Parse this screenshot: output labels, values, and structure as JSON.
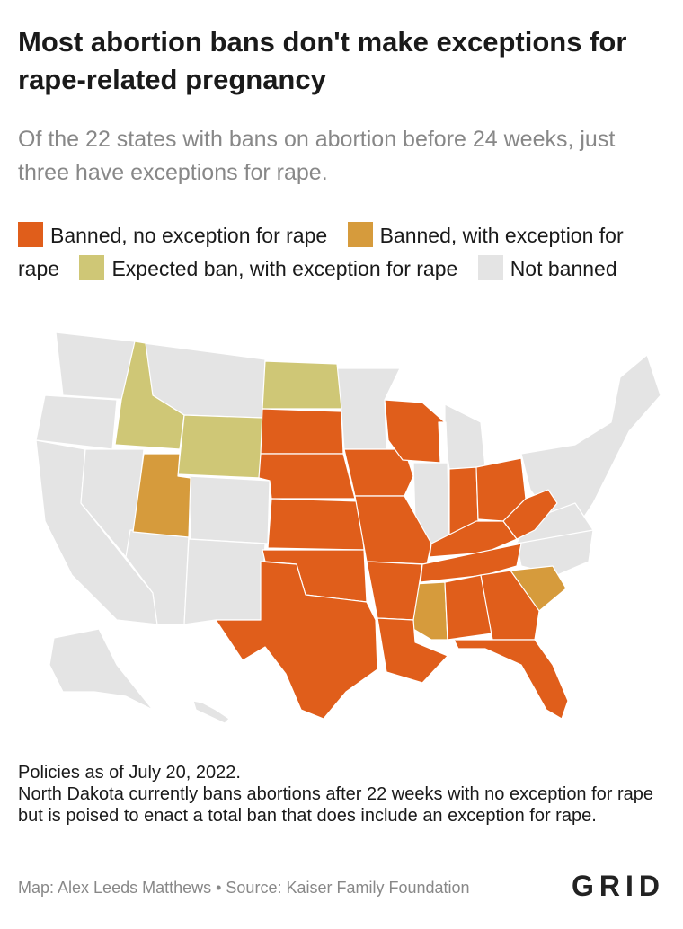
{
  "title": "Most abortion bans don't make exceptions for rape-related pregnancy",
  "subtitle": "Of the 22 states with bans on abortion before 24 weeks, just three have exceptions for rape.",
  "legend": [
    {
      "label": "Banned, no exception for rape",
      "color": "#e05e1b"
    },
    {
      "label": "Banned, with exception for rape",
      "color": "#d69b3c"
    },
    {
      "label": "Expected ban, with exception for rape",
      "color": "#cfc776"
    },
    {
      "label": "Not banned",
      "color": "#e4e4e4"
    }
  ],
  "colors": {
    "no_exception": "#e05e1b",
    "with_exception": "#d69b3c",
    "expected": "#cfc776",
    "not_banned": "#e4e4e4"
  },
  "states": {
    "no_exception": [
      "South Dakota",
      "Nebraska",
      "Kansas",
      "Oklahoma",
      "Texas",
      "Iowa",
      "Missouri",
      "Arkansas",
      "Louisiana",
      "Wisconsin",
      "Indiana",
      "Ohio",
      "Kentucky",
      "Tennessee",
      "West Virginia",
      "Alabama",
      "Georgia",
      "Florida"
    ],
    "with_exception": [
      "Utah",
      "Mississippi",
      "South Carolina"
    ],
    "expected": [
      "Idaho",
      "Wyoming",
      "North Dakota"
    ]
  },
  "notes": [
    "Policies as of July 20, 2022.",
    "North Dakota currently bans abortions after 22 weeks with no exception for rape but is poised to enact a total ban that does include an exception for rape."
  ],
  "credit": "Map: Alex Leeds Matthews • Source: Kaiser Family Foundation",
  "logo": "GRID"
}
